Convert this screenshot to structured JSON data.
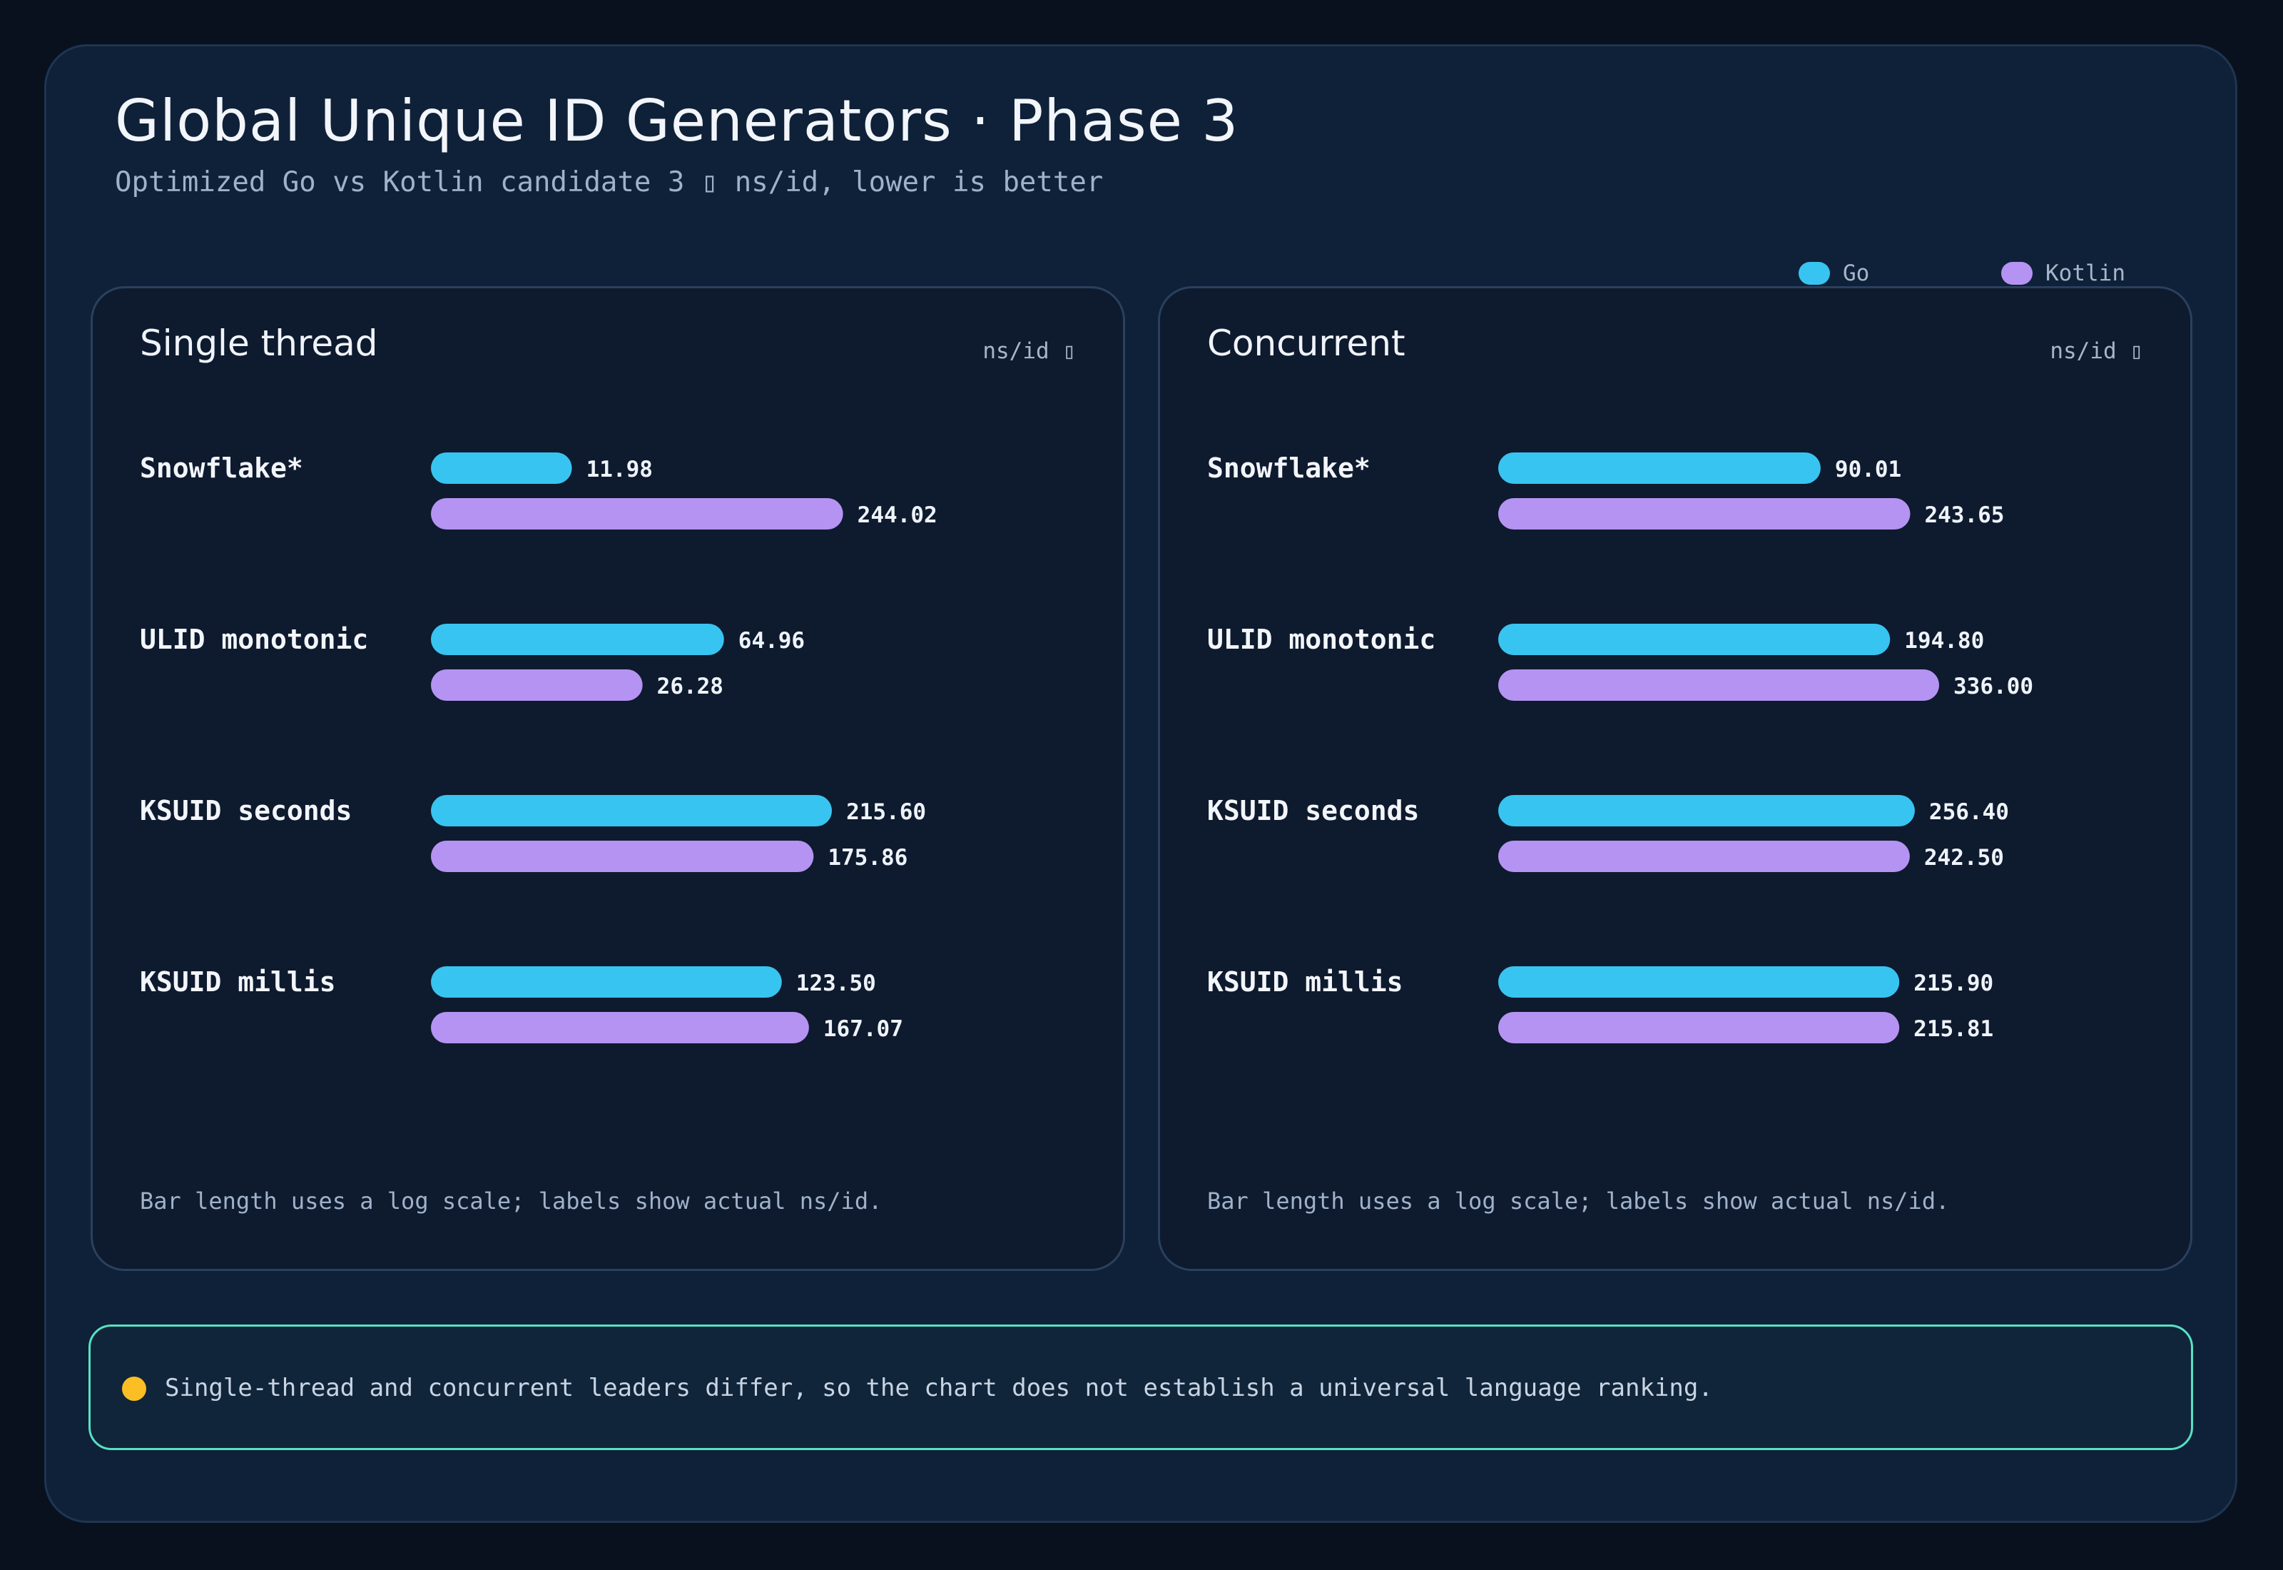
{
  "title": "Global Unique ID Generators · Phase 3",
  "subtitle": "Optimized Go vs Kotlin candidate 3 ▯ ns/id, lower is better",
  "colors": {
    "go": "#38c4f0",
    "kotlin": "#b593f2",
    "callout_dot": "#fbbf24",
    "callout_border": "#58e1c4"
  },
  "legend": [
    {
      "label": "Go",
      "color": "#38c4f0"
    },
    {
      "label": "Kotlin",
      "color": "#b593f2"
    }
  ],
  "callout": {
    "icon": "dot-icon",
    "text": "Single-thread and concurrent leaders differ, so the chart does not establish a universal language ranking."
  },
  "chart_data": [
    {
      "type": "bar",
      "orientation": "horizontal",
      "title": "Single thread",
      "unit_label": "ns/id ▯",
      "scale": "log",
      "note": "Bar length uses a log scale; labels show actual ns/id.",
      "categories": [
        "Snowflake*",
        "ULID monotonic",
        "KSUID seconds",
        "KSUID millis"
      ],
      "series": [
        {
          "name": "Go",
          "color": "#38c4f0",
          "values": [
            11.98,
            64.96,
            215.6,
            123.5
          ]
        },
        {
          "name": "Kotlin",
          "color": "#b593f2",
          "values": [
            244.02,
            26.28,
            175.86,
            167.07
          ]
        }
      ]
    },
    {
      "type": "bar",
      "orientation": "horizontal",
      "title": "Concurrent",
      "unit_label": "ns/id ▯",
      "scale": "log",
      "note": "Bar length uses a log scale; labels show actual ns/id.",
      "categories": [
        "Snowflake*",
        "ULID monotonic",
        "KSUID seconds",
        "KSUID millis"
      ],
      "series": [
        {
          "name": "Go",
          "color": "#38c4f0",
          "values": [
            90.01,
            194.8,
            256.4,
            215.9
          ]
        },
        {
          "name": "Kotlin",
          "color": "#b593f2",
          "values": [
            243.65,
            336.0,
            242.5,
            215.81
          ]
        }
      ]
    }
  ]
}
